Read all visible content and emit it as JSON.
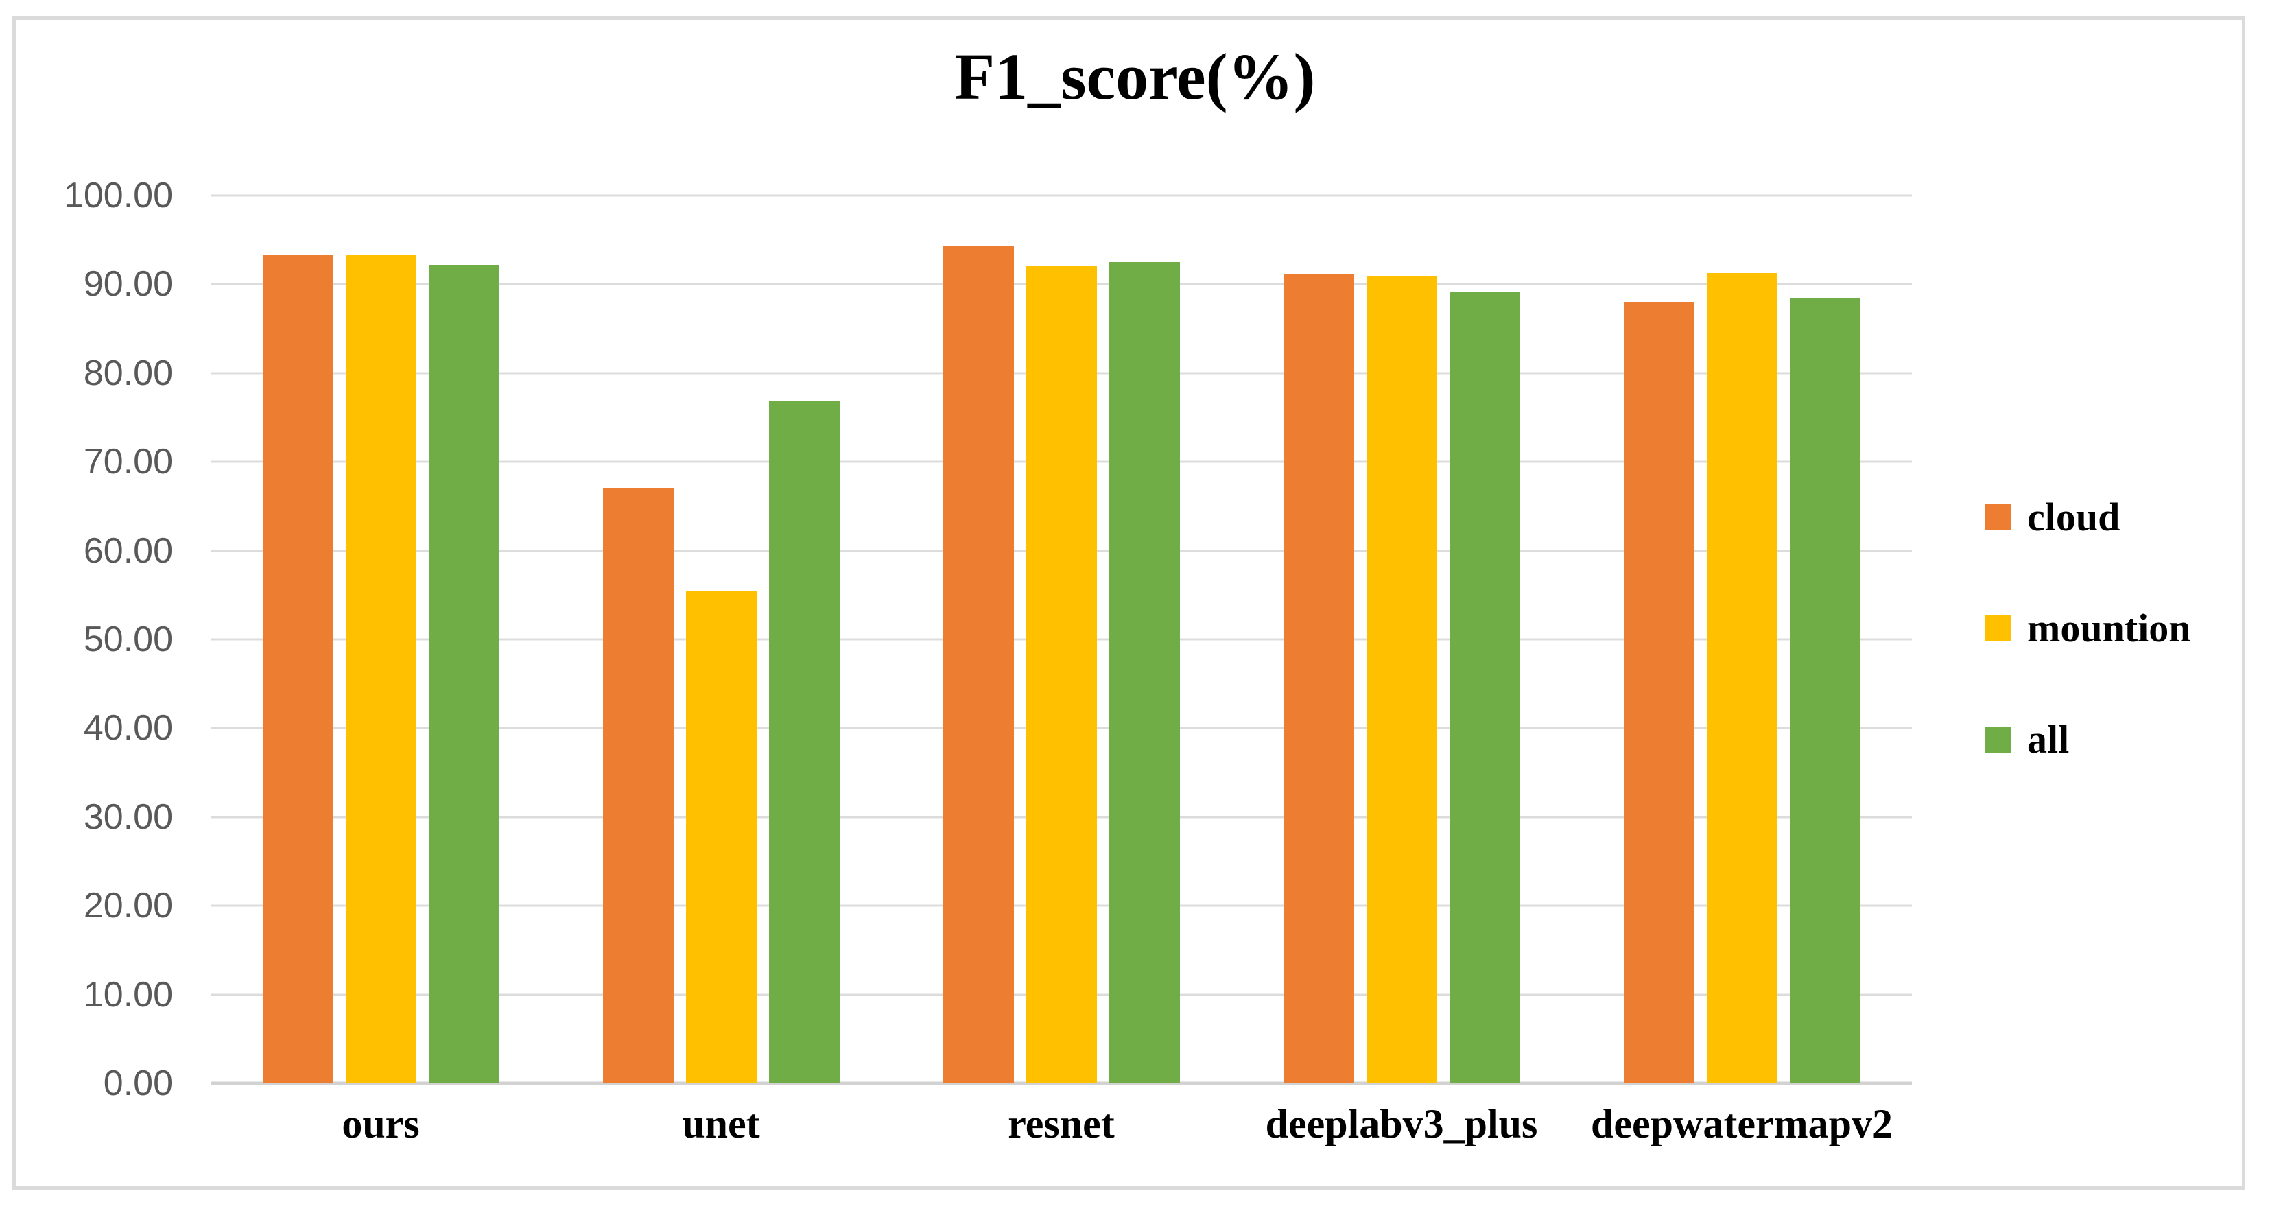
{
  "chart_data": {
    "type": "bar",
    "title": "F1_score(%)",
    "categories": [
      "ours",
      "unet",
      "resnet",
      "deeplabv3_plus",
      "deepwatermapv2"
    ],
    "series": [
      {
        "name": "cloud",
        "color": "#ED7D31",
        "values": [
          93.3,
          67.1,
          94.3,
          91.2,
          88.0
        ]
      },
      {
        "name": "mountion",
        "color": "#FFC000",
        "values": [
          93.3,
          55.4,
          92.1,
          90.9,
          91.3
        ]
      },
      {
        "name": "all",
        "color": "#70AD47",
        "values": [
          92.2,
          76.9,
          92.5,
          89.1,
          88.5
        ]
      }
    ],
    "ylim": [
      0,
      100
    ],
    "ytick_step": 10,
    "ytick_labels": [
      "100.00",
      "90.00",
      "80.00",
      "70.00",
      "60.00",
      "50.00",
      "40.00",
      "30.00",
      "20.00",
      "10.00",
      "0.00"
    ],
    "grid": true,
    "legend_position": "right"
  },
  "colors": {
    "gridline": "#DCDCDC",
    "axis_line": "#D2D2D2",
    "axis_text": "#595959",
    "frame_border": "#DBDBDB",
    "title_text": "#000000"
  }
}
